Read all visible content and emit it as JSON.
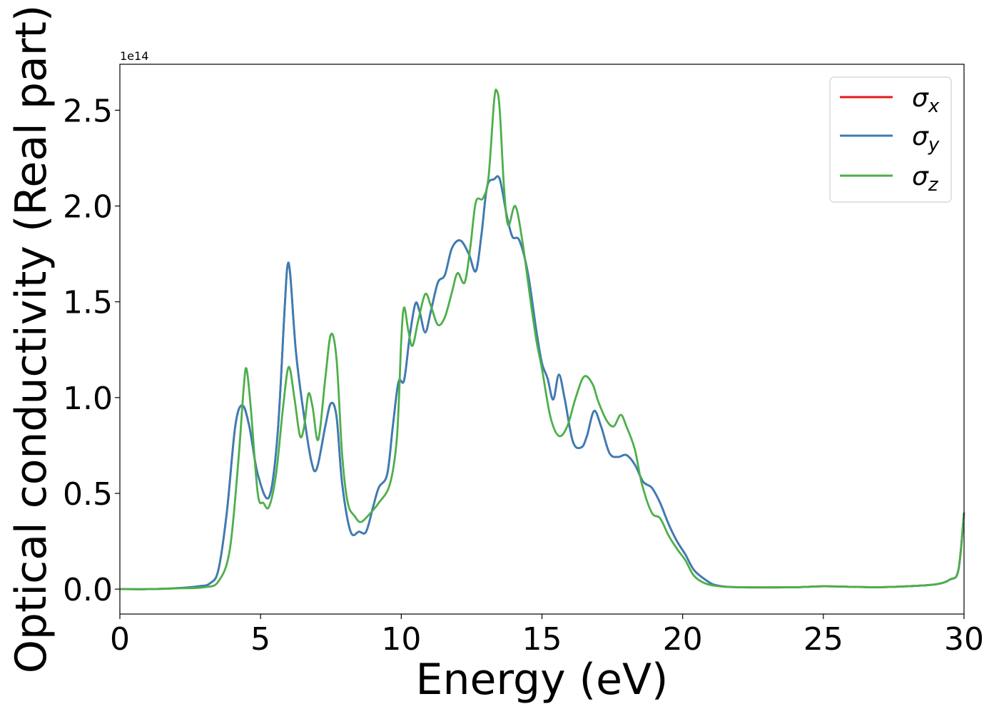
{
  "chart_data": {
    "type": "line",
    "xlabel": "Energy (eV)",
    "ylabel": "Optical conductivity (Real part)",
    "y_offset_label": "1e14",
    "xlim": [
      0,
      30
    ],
    "ylim": [
      -0.13,
      2.74
    ],
    "x_ticks": [
      0,
      5,
      10,
      15,
      20,
      25,
      30
    ],
    "y_ticks": [
      0.0,
      0.5,
      1.0,
      1.5,
      2.0,
      2.5
    ],
    "x_tick_labels": [
      "0",
      "5",
      "10",
      "15",
      "20",
      "25",
      "30"
    ],
    "y_tick_labels": [
      "0.0",
      "0.5",
      "1.0",
      "1.5",
      "2.0",
      "2.5"
    ],
    "grid": false,
    "legend_position": "top-right",
    "legend": [
      {
        "symbol": "σ",
        "sub": "x",
        "color": "#e41a1c"
      },
      {
        "symbol": "σ",
        "sub": "y",
        "color": "#377eb8"
      },
      {
        "symbol": "σ",
        "sub": "z",
        "color": "#4daf4a"
      }
    ],
    "series": [
      {
        "name": "σx",
        "color": "#e41a1c",
        "points": [
          [
            0,
            0
          ],
          [
            1,
            0
          ],
          [
            2,
            0.005
          ],
          [
            2.8,
            0.015
          ],
          [
            3.2,
            0.03
          ],
          [
            3.5,
            0.1
          ],
          [
            3.8,
            0.4
          ],
          [
            4.1,
            0.85
          ],
          [
            4.35,
            0.96
          ],
          [
            4.6,
            0.85
          ],
          [
            4.9,
            0.6
          ],
          [
            5.3,
            0.48
          ],
          [
            5.6,
            0.8
          ],
          [
            5.85,
            1.45
          ],
          [
            5.95,
            1.68
          ],
          [
            6.05,
            1.65
          ],
          [
            6.25,
            1.25
          ],
          [
            6.5,
            0.95
          ],
          [
            6.8,
            0.67
          ],
          [
            7.0,
            0.63
          ],
          [
            7.3,
            0.85
          ],
          [
            7.5,
            0.97
          ],
          [
            7.7,
            0.9
          ],
          [
            7.9,
            0.55
          ],
          [
            8.2,
            0.3
          ],
          [
            8.5,
            0.3
          ],
          [
            8.75,
            0.3
          ],
          [
            9.0,
            0.43
          ],
          [
            9.2,
            0.53
          ],
          [
            9.5,
            0.6
          ],
          [
            9.7,
            0.85
          ],
          [
            9.9,
            1.08
          ],
          [
            10.1,
            1.09
          ],
          [
            10.3,
            1.32
          ],
          [
            10.5,
            1.49
          ],
          [
            10.65,
            1.45
          ],
          [
            10.85,
            1.34
          ],
          [
            11.05,
            1.45
          ],
          [
            11.3,
            1.6
          ],
          [
            11.55,
            1.64
          ],
          [
            11.8,
            1.78
          ],
          [
            12.1,
            1.82
          ],
          [
            12.4,
            1.75
          ],
          [
            12.65,
            1.66
          ],
          [
            12.85,
            1.85
          ],
          [
            13.05,
            2.1
          ],
          [
            13.3,
            2.14
          ],
          [
            13.5,
            2.14
          ],
          [
            13.75,
            1.95
          ],
          [
            13.95,
            1.84
          ],
          [
            14.2,
            1.82
          ],
          [
            14.5,
            1.65
          ],
          [
            14.8,
            1.35
          ],
          [
            15.0,
            1.18
          ],
          [
            15.2,
            1.1
          ],
          [
            15.4,
            0.99
          ],
          [
            15.6,
            1.12
          ],
          [
            15.8,
            1.0
          ],
          [
            16.1,
            0.77
          ],
          [
            16.4,
            0.74
          ],
          [
            16.6,
            0.8
          ],
          [
            16.85,
            0.93
          ],
          [
            17.1,
            0.85
          ],
          [
            17.4,
            0.71
          ],
          [
            17.7,
            0.69
          ],
          [
            18.0,
            0.7
          ],
          [
            18.3,
            0.65
          ],
          [
            18.6,
            0.56
          ],
          [
            18.9,
            0.53
          ],
          [
            19.2,
            0.45
          ],
          [
            19.5,
            0.34
          ],
          [
            19.8,
            0.25
          ],
          [
            20.1,
            0.18
          ],
          [
            20.4,
            0.1
          ],
          [
            20.8,
            0.05
          ],
          [
            21.2,
            0.02
          ],
          [
            22,
            0.01
          ],
          [
            24,
            0.01
          ],
          [
            25,
            0.015
          ],
          [
            26,
            0.012
          ],
          [
            27,
            0.01
          ],
          [
            28,
            0.015
          ],
          [
            29,
            0.025
          ],
          [
            29.5,
            0.05
          ],
          [
            29.8,
            0.1
          ],
          [
            30,
            0.4
          ]
        ]
      },
      {
        "name": "σy",
        "color": "#377eb8",
        "points": [
          [
            0,
            0
          ],
          [
            1,
            0
          ],
          [
            2,
            0.005
          ],
          [
            2.8,
            0.015
          ],
          [
            3.2,
            0.03
          ],
          [
            3.5,
            0.1
          ],
          [
            3.8,
            0.4
          ],
          [
            4.1,
            0.85
          ],
          [
            4.35,
            0.96
          ],
          [
            4.6,
            0.85
          ],
          [
            4.9,
            0.6
          ],
          [
            5.3,
            0.48
          ],
          [
            5.6,
            0.8
          ],
          [
            5.85,
            1.45
          ],
          [
            5.95,
            1.68
          ],
          [
            6.05,
            1.65
          ],
          [
            6.25,
            1.25
          ],
          [
            6.5,
            0.95
          ],
          [
            6.8,
            0.67
          ],
          [
            7.0,
            0.63
          ],
          [
            7.3,
            0.85
          ],
          [
            7.5,
            0.97
          ],
          [
            7.7,
            0.9
          ],
          [
            7.9,
            0.55
          ],
          [
            8.2,
            0.3
          ],
          [
            8.5,
            0.3
          ],
          [
            8.75,
            0.3
          ],
          [
            9.0,
            0.43
          ],
          [
            9.2,
            0.53
          ],
          [
            9.5,
            0.6
          ],
          [
            9.7,
            0.85
          ],
          [
            9.9,
            1.08
          ],
          [
            10.1,
            1.09
          ],
          [
            10.3,
            1.32
          ],
          [
            10.5,
            1.49
          ],
          [
            10.65,
            1.45
          ],
          [
            10.85,
            1.34
          ],
          [
            11.05,
            1.45
          ],
          [
            11.3,
            1.6
          ],
          [
            11.55,
            1.64
          ],
          [
            11.8,
            1.78
          ],
          [
            12.1,
            1.82
          ],
          [
            12.4,
            1.75
          ],
          [
            12.65,
            1.66
          ],
          [
            12.85,
            1.85
          ],
          [
            13.05,
            2.1
          ],
          [
            13.3,
            2.14
          ],
          [
            13.5,
            2.14
          ],
          [
            13.75,
            1.95
          ],
          [
            13.95,
            1.84
          ],
          [
            14.2,
            1.82
          ],
          [
            14.5,
            1.65
          ],
          [
            14.8,
            1.35
          ],
          [
            15.0,
            1.18
          ],
          [
            15.2,
            1.1
          ],
          [
            15.4,
            0.99
          ],
          [
            15.6,
            1.12
          ],
          [
            15.8,
            1.0
          ],
          [
            16.1,
            0.77
          ],
          [
            16.4,
            0.74
          ],
          [
            16.6,
            0.8
          ],
          [
            16.85,
            0.93
          ],
          [
            17.1,
            0.85
          ],
          [
            17.4,
            0.71
          ],
          [
            17.7,
            0.69
          ],
          [
            18.0,
            0.7
          ],
          [
            18.3,
            0.65
          ],
          [
            18.6,
            0.56
          ],
          [
            18.9,
            0.53
          ],
          [
            19.2,
            0.45
          ],
          [
            19.5,
            0.34
          ],
          [
            19.8,
            0.25
          ],
          [
            20.1,
            0.18
          ],
          [
            20.4,
            0.1
          ],
          [
            20.8,
            0.05
          ],
          [
            21.2,
            0.02
          ],
          [
            22,
            0.01
          ],
          [
            24,
            0.01
          ],
          [
            25,
            0.015
          ],
          [
            26,
            0.012
          ],
          [
            27,
            0.01
          ],
          [
            28,
            0.015
          ],
          [
            29,
            0.025
          ],
          [
            29.5,
            0.05
          ],
          [
            29.8,
            0.1
          ],
          [
            30,
            0.4
          ]
        ]
      },
      {
        "name": "σz",
        "color": "#4daf4a",
        "points": [
          [
            0,
            0
          ],
          [
            1,
            0
          ],
          [
            2,
            0.004
          ],
          [
            3,
            0.01
          ],
          [
            3.5,
            0.04
          ],
          [
            3.9,
            0.2
          ],
          [
            4.2,
            0.65
          ],
          [
            4.4,
            1.05
          ],
          [
            4.5,
            1.15
          ],
          [
            4.65,
            0.95
          ],
          [
            4.9,
            0.5
          ],
          [
            5.1,
            0.45
          ],
          [
            5.3,
            0.43
          ],
          [
            5.55,
            0.6
          ],
          [
            5.8,
            0.95
          ],
          [
            6.0,
            1.16
          ],
          [
            6.2,
            1.0
          ],
          [
            6.4,
            0.8
          ],
          [
            6.55,
            0.85
          ],
          [
            6.7,
            1.02
          ],
          [
            6.85,
            0.95
          ],
          [
            7.05,
            0.78
          ],
          [
            7.3,
            1.1
          ],
          [
            7.5,
            1.33
          ],
          [
            7.7,
            1.2
          ],
          [
            7.9,
            0.7
          ],
          [
            8.1,
            0.45
          ],
          [
            8.35,
            0.38
          ],
          [
            8.55,
            0.35
          ],
          [
            8.8,
            0.38
          ],
          [
            9.2,
            0.45
          ],
          [
            9.6,
            0.55
          ],
          [
            9.85,
            0.8
          ],
          [
            10.0,
            1.3
          ],
          [
            10.1,
            1.47
          ],
          [
            10.25,
            1.35
          ],
          [
            10.4,
            1.27
          ],
          [
            10.6,
            1.4
          ],
          [
            10.85,
            1.54
          ],
          [
            11.05,
            1.48
          ],
          [
            11.3,
            1.38
          ],
          [
            11.55,
            1.42
          ],
          [
            11.8,
            1.55
          ],
          [
            12.0,
            1.65
          ],
          [
            12.25,
            1.6
          ],
          [
            12.45,
            1.78
          ],
          [
            12.65,
            2.02
          ],
          [
            12.9,
            2.04
          ],
          [
            13.1,
            2.15
          ],
          [
            13.3,
            2.55
          ],
          [
            13.4,
            2.6
          ],
          [
            13.5,
            2.5
          ],
          [
            13.65,
            2.1
          ],
          [
            13.8,
            1.9
          ],
          [
            14.05,
            2.0
          ],
          [
            14.3,
            1.82
          ],
          [
            14.6,
            1.5
          ],
          [
            14.8,
            1.3
          ],
          [
            15.0,
            1.15
          ],
          [
            15.3,
            0.9
          ],
          [
            15.6,
            0.8
          ],
          [
            15.9,
            0.85
          ],
          [
            16.2,
            1.0
          ],
          [
            16.5,
            1.11
          ],
          [
            16.8,
            1.07
          ],
          [
            17.0,
            0.98
          ],
          [
            17.3,
            0.88
          ],
          [
            17.55,
            0.85
          ],
          [
            17.8,
            0.91
          ],
          [
            18.0,
            0.85
          ],
          [
            18.3,
            0.73
          ],
          [
            18.55,
            0.55
          ],
          [
            18.9,
            0.4
          ],
          [
            19.2,
            0.37
          ],
          [
            19.5,
            0.28
          ],
          [
            19.8,
            0.21
          ],
          [
            20.1,
            0.15
          ],
          [
            20.4,
            0.07
          ],
          [
            20.8,
            0.03
          ],
          [
            21.3,
            0.015
          ],
          [
            22,
            0.01
          ],
          [
            24,
            0.01
          ],
          [
            25,
            0.015
          ],
          [
            26,
            0.012
          ],
          [
            27,
            0.01
          ],
          [
            28,
            0.015
          ],
          [
            29,
            0.025
          ],
          [
            29.5,
            0.05
          ],
          [
            29.8,
            0.1
          ],
          [
            30,
            0.4
          ]
        ]
      }
    ]
  }
}
